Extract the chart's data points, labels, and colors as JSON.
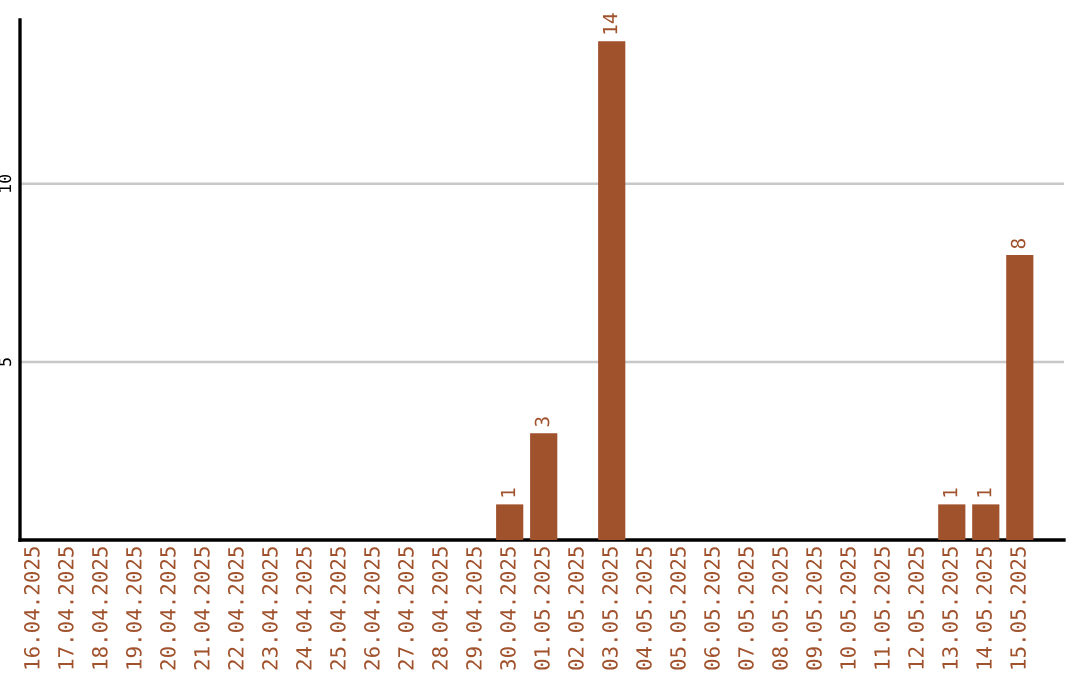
{
  "chart_data": {
    "type": "bar",
    "categories": [
      "16.04.2025",
      "17.04.2025",
      "18.04.2025",
      "19.04.2025",
      "20.04.2025",
      "21.04.2025",
      "22.04.2025",
      "23.04.2025",
      "24.04.2025",
      "25.04.2025",
      "26.04.2025",
      "27.04.2025",
      "28.04.2025",
      "29.04.2025",
      "30.04.2025",
      "01.05.2025",
      "02.05.2025",
      "03.05.2025",
      "04.05.2025",
      "05.05.2025",
      "06.05.2025",
      "07.05.2025",
      "08.05.2025",
      "09.05.2025",
      "10.05.2025",
      "11.05.2025",
      "12.05.2025",
      "13.05.2025",
      "14.05.2025",
      "15.05.2025"
    ],
    "values": [
      0,
      0,
      0,
      0,
      0,
      0,
      0,
      0,
      0,
      0,
      0,
      0,
      0,
      0,
      1,
      3,
      0,
      14,
      0,
      0,
      0,
      0,
      0,
      0,
      0,
      0,
      0,
      1,
      1,
      8
    ],
    "value_labels": [
      null,
      null,
      null,
      null,
      null,
      null,
      null,
      null,
      null,
      null,
      null,
      null,
      null,
      null,
      "1",
      "3",
      null,
      "14",
      null,
      null,
      null,
      null,
      null,
      null,
      null,
      null,
      null,
      "1",
      "1",
      "8"
    ],
    "color": "#a0522d",
    "ylim": [
      0,
      14.6
    ],
    "yticks": [
      5,
      10
    ],
    "grid": "y"
  }
}
